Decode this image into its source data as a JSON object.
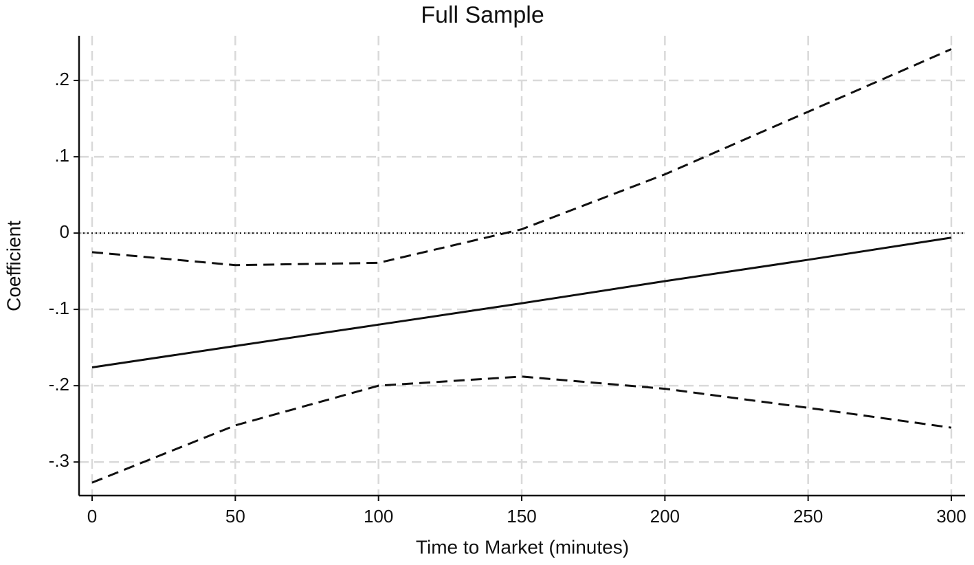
{
  "chart_data": {
    "type": "line",
    "title": "Full Sample",
    "x_label": "Time to Market (minutes)",
    "y_label": "Coefficient",
    "x": [
      0,
      50,
      100,
      150,
      200,
      250,
      300
    ],
    "series": [
      {
        "color": "#111111",
        "dash": false,
        "values": [
          -0.176,
          -0.148,
          -0.12,
          -0.092,
          -0.063,
          -0.035,
          -0.006
        ]
      },
      {
        "color": "#111111",
        "dash": true,
        "values": [
          -0.025,
          -0.042,
          -0.039,
          0.005,
          0.077,
          0.159,
          0.241
        ]
      },
      {
        "color": "#111111",
        "dash": true,
        "values": [
          -0.327,
          -0.252,
          -0.2,
          -0.188,
          -0.204,
          -0.229,
          -0.255
        ]
      }
    ],
    "xlim": [
      -4.56,
      304.8
    ],
    "ylim": [
      -0.344,
      0.2586
    ],
    "xticks": [
      0,
      50,
      100,
      150,
      200,
      250,
      300
    ],
    "yticks": [
      {
        "value": -0.3,
        "label": "-.3"
      },
      {
        "value": -0.2,
        "label": "-.2"
      },
      {
        "value": -0.1,
        "label": "-.1"
      },
      0,
      {
        "value": 0.1,
        "label": ".1"
      },
      {
        "value": 0.2,
        "label": ".2"
      }
    ],
    "reference_line": 0,
    "grid": true
  }
}
